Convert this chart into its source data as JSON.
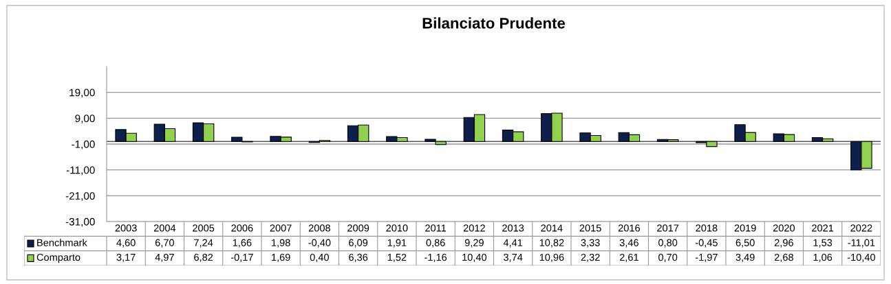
{
  "chart_data": {
    "type": "bar",
    "title": "Bilanciato Prudente",
    "categories": [
      "2003",
      "2004",
      "2005",
      "2006",
      "2007",
      "2008",
      "2009",
      "2010",
      "2011",
      "2012",
      "2013",
      "2014",
      "2015",
      "2016",
      "2017",
      "2018",
      "2019",
      "2020",
      "2021",
      "2022"
    ],
    "series": [
      {
        "name": "Benchmark",
        "color": "#0f1f4b",
        "values": [
          4.6,
          6.7,
          7.24,
          1.66,
          1.98,
          -0.4,
          6.09,
          1.91,
          0.86,
          9.29,
          4.41,
          10.82,
          3.33,
          3.46,
          0.8,
          -0.45,
          6.5,
          2.96,
          1.53,
          -11.01
        ],
        "value_labels": [
          "4,60",
          "6,70",
          "7,24",
          "1,66",
          "1,98",
          "-0,40",
          "6,09",
          "1,91",
          "0,86",
          "9,29",
          "4,41",
          "10,82",
          "3,33",
          "3,46",
          "0,80",
          "-0,45",
          "6,50",
          "2,96",
          "1,53",
          "-11,01"
        ]
      },
      {
        "name": "Comparto",
        "color": "#92d050",
        "values": [
          3.17,
          4.97,
          6.82,
          -0.17,
          1.69,
          0.4,
          6.36,
          1.52,
          -1.16,
          10.4,
          3.74,
          10.96,
          2.32,
          2.61,
          0.7,
          -1.97,
          3.49,
          2.68,
          1.06,
          -10.4
        ],
        "value_labels": [
          "3,17",
          "4,97",
          "6,82",
          "-0,17",
          "1,69",
          "0,40",
          "6,36",
          "1,52",
          "-1,16",
          "10,40",
          "3,74",
          "10,96",
          "2,32",
          "2,61",
          "0,70",
          "-1,97",
          "3,49",
          "2,68",
          "1,06",
          "-10,40"
        ]
      }
    ],
    "ylim": [
      -31,
      29
    ],
    "yticks": [
      {
        "value": -31,
        "label": "-31,00"
      },
      {
        "value": -21,
        "label": "-21,00"
      },
      {
        "value": -11,
        "label": "-11,00"
      },
      {
        "value": -1,
        "label": "-1,00"
      },
      {
        "value": 9,
        "label": "9,00"
      },
      {
        "value": 19,
        "label": "19,00"
      }
    ],
    "grid": "y",
    "legend": "bottom"
  }
}
